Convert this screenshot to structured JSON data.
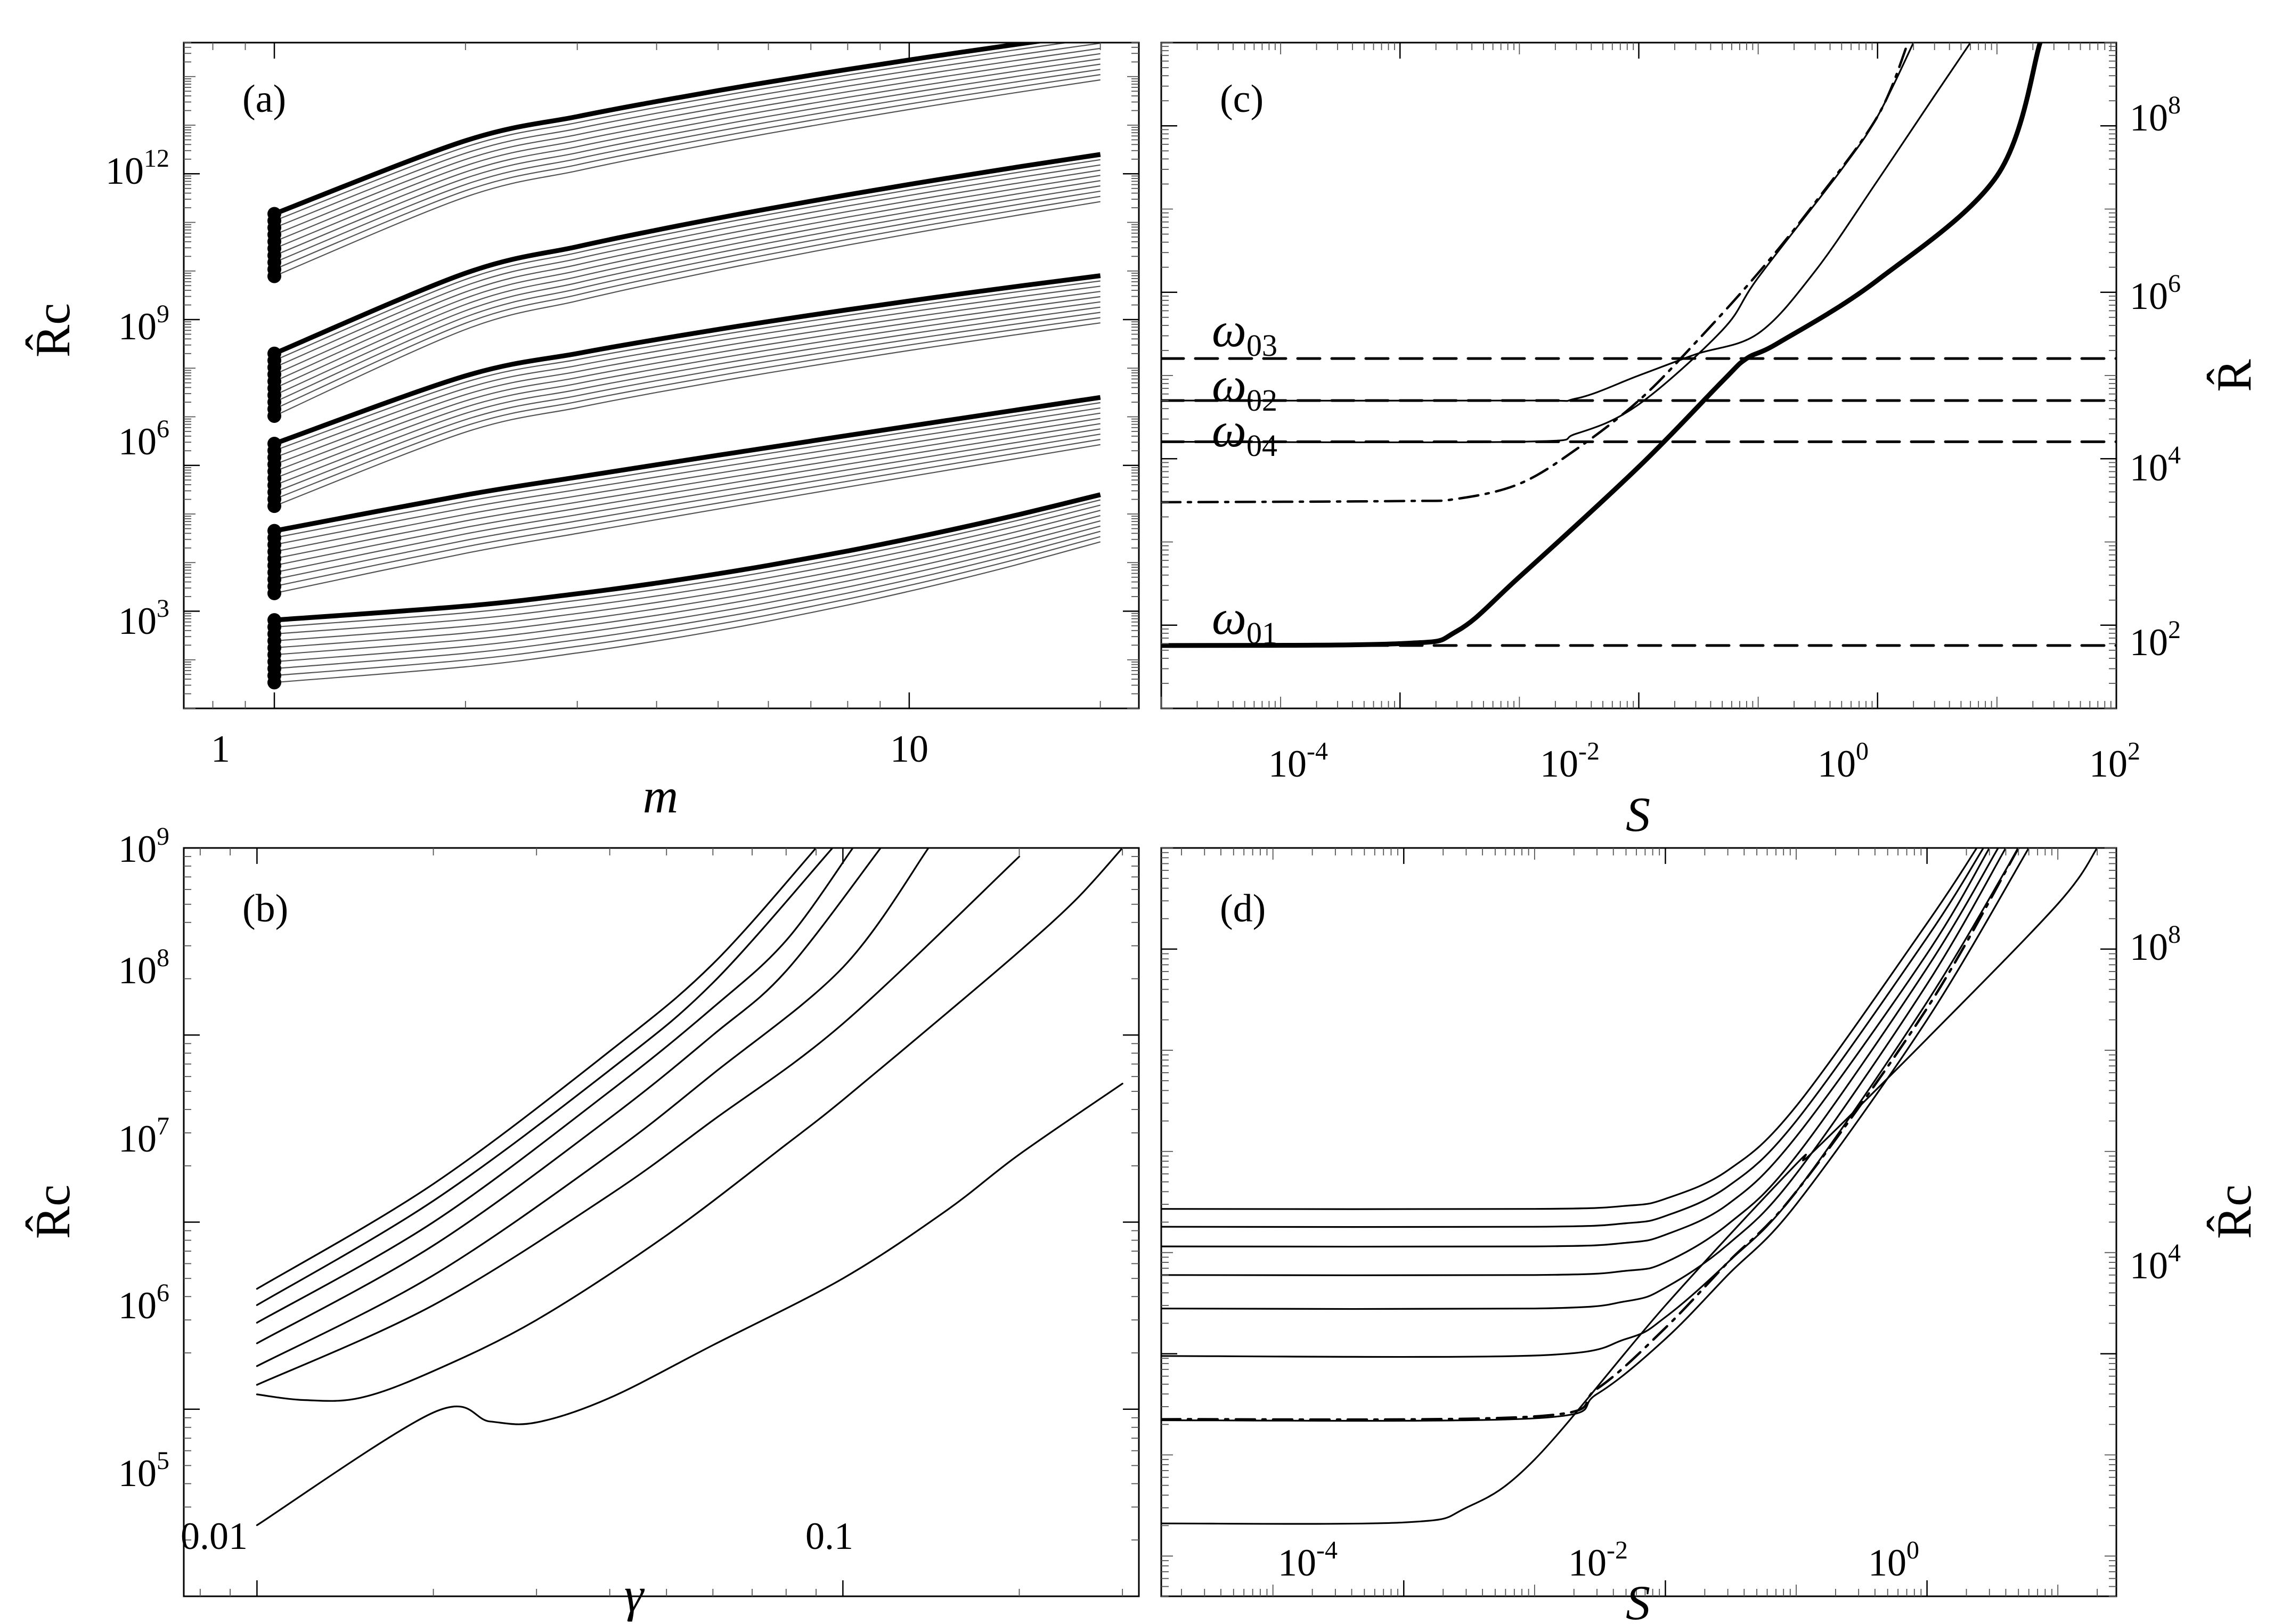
{
  "figure": {
    "panels": [
      {
        "id": "a",
        "label": "(a)",
        "xlabel": "m",
        "ylabel": "R̂c",
        "ytick_labels": [
          "10",
          "10",
          "10",
          "10"
        ],
        "ytick_exps": [
          "3",
          "6",
          "9",
          "12"
        ],
        "xtick_labels": [
          "1",
          "10"
        ]
      },
      {
        "id": "b",
        "label": "(b)",
        "xlabel": "γ",
        "ylabel": "R̂c",
        "ytick_labels": [
          "10",
          "10",
          "10",
          "10",
          "10"
        ],
        "ytick_exps": [
          "5",
          "6",
          "7",
          "8",
          "9"
        ],
        "xtick_labels": [
          "0.01",
          "0.1"
        ]
      },
      {
        "id": "c",
        "label": "(c)",
        "xlabel": "S",
        "ylabel": "R̂",
        "ytick_labels": [
          "10",
          "10",
          "10",
          "10"
        ],
        "ytick_exps": [
          "2",
          "4",
          "6",
          "8"
        ],
        "xtick_labels": [
          "10",
          "10",
          "10",
          "10"
        ],
        "xtick_exps": [
          "-4",
          "-2",
          "0",
          "2"
        ],
        "annotations": [
          {
            "sym": "ω",
            "sub": "03"
          },
          {
            "sym": "ω",
            "sub": "02"
          },
          {
            "sym": "ω",
            "sub": "04"
          },
          {
            "sym": "ω",
            "sub": "01"
          }
        ]
      },
      {
        "id": "d",
        "label": "(d)",
        "xlabel": "S",
        "ylabel": "R̂c",
        "ytick_labels": [
          "10",
          "10"
        ],
        "ytick_exps": [
          "4",
          "8"
        ],
        "xtick_labels": [
          "10",
          "10",
          "10"
        ],
        "xtick_exps": [
          "-4",
          "-2",
          "0"
        ]
      }
    ]
  },
  "chart_data": [
    {
      "type": "line",
      "panel": "a",
      "title": "(a)",
      "xlabel": "m",
      "ylabel": "R̂c",
      "xscale": "log",
      "yscale": "log",
      "xlim": [
        0.72,
        23
      ],
      "ylim": [
        10,
        500000000000000.0
      ],
      "x": [
        1,
        2,
        3,
        4,
        5,
        6,
        8,
        10,
        12,
        15,
        20
      ],
      "note": "Five bold curves (one per radial mode) each with nine thin companion curves; dots at m = 1.",
      "series": [
        {
          "name": "family-1-bold",
          "start": 657,
          "end": 250000.0,
          "profile": "concave-up"
        },
        {
          "name": "family-2-bold",
          "start": 45000.0,
          "end": 25000000.0,
          "profile": "linear"
        },
        {
          "name": "family-3-bold",
          "start": 2800000.0,
          "end": 8000000000.0,
          "profile": "concave-down"
        },
        {
          "name": "family-4-bold",
          "start": 200000000.0,
          "end": 2500000000000.0,
          "profile": "concave-down"
        },
        {
          "name": "family-5-bold",
          "start": 150000000000.0,
          "end": 800000000000000.0,
          "profile": "concave-down"
        }
      ],
      "thin_curve_start_ratio": 0.72
    },
    {
      "type": "line",
      "panel": "b",
      "title": "(b)",
      "xlabel": "γ",
      "ylabel": "R̂c",
      "xscale": "log",
      "yscale": "log",
      "xlim": [
        0.0075,
        0.32
      ],
      "ylim": [
        100000.0,
        1000000000.0
      ],
      "series": [
        {
          "name": "curve-1",
          "x": [
            0.01,
            0.02,
            0.025,
            0.03,
            0.04,
            0.06,
            0.1,
            0.15,
            0.2,
            0.3
          ],
          "y": [
            240000.0,
            960000.0,
            860000.0,
            850000.0,
            1150000.0,
            2200000.0,
            5000000.0,
            11500000.0,
            23000000.0,
            55000000.0
          ]
        },
        {
          "name": "curve-2",
          "x": [
            0.01,
            0.012,
            0.015,
            0.02,
            0.03,
            0.05,
            0.08,
            0.1,
            0.15,
            0.2,
            0.25,
            0.3
          ],
          "y": [
            1200000.0,
            1120000.0,
            1150000.0,
            1600000.0,
            3000000.0,
            8500000.0,
            26000000.0,
            45000000.0,
            130000000.0,
            280000000.0,
            530000000.0,
            1000000000.0
          ]
        },
        {
          "name": "curve-3",
          "x": [
            0.01,
            0.02,
            0.04,
            0.06,
            0.1,
            0.2
          ],
          "y": [
            1350000.0,
            3600000.0,
            14000000.0,
            35000000.0,
            115000000.0,
            900000000.0
          ]
        },
        {
          "name": "curve-4",
          "x": [
            0.01,
            0.02,
            0.04,
            0.06,
            0.1,
            0.14
          ],
          "y": [
            1700000.0,
            5200000.0,
            23000000.0,
            62000000.0,
            230000000.0,
            1000000000.0
          ]
        },
        {
          "name": "curve-5",
          "x": [
            0.01,
            0.02,
            0.04,
            0.06,
            0.08,
            0.116
          ],
          "y": [
            2250000.0,
            7500000.0,
            36000000.0,
            100000000.0,
            220000000.0,
            1000000000.0
          ]
        },
        {
          "name": "curve-6",
          "x": [
            0.01,
            0.02,
            0.04,
            0.06,
            0.08,
            0.104
          ],
          "y": [
            2900000.0,
            10000000.0,
            50000000.0,
            140000000.0,
            320000000.0,
            1000000000.0
          ]
        },
        {
          "name": "curve-7",
          "x": [
            0.01,
            0.02,
            0.04,
            0.06,
            0.096
          ],
          "y": [
            3600000.0,
            13000000.0,
            65000000.0,
            190000000.0,
            1000000000.0
          ]
        },
        {
          "name": "curve-8",
          "x": [
            0.01,
            0.02,
            0.04,
            0.06,
            0.09
          ],
          "y": [
            4400000.0,
            16000000.0,
            82000000.0,
            240000000.0,
            1000000000.0
          ]
        }
      ]
    },
    {
      "type": "line",
      "panel": "c",
      "title": "(c)",
      "xlabel": "S",
      "ylabel": "R̂",
      "xscale": "log",
      "yscale": "log",
      "xlim": [
        1e-06,
        100
      ],
      "ylim": [
        10,
        1000000000.0
      ],
      "series": [
        {
          "name": "ω01 (dashed)",
          "style": "dashed",
          "x": [
            1e-06,
            100
          ],
          "y": [
            57,
            57
          ]
        },
        {
          "name": "ω04 (dashed)",
          "style": "dashed",
          "x": [
            1e-06,
            100
          ],
          "y": [
            16000.0,
            16000.0
          ]
        },
        {
          "name": "ω02 (dashed)",
          "style": "dashed",
          "x": [
            1e-06,
            100
          ],
          "y": [
            50000.0,
            50000.0
          ]
        },
        {
          "name": "ω03 (dashed)",
          "style": "dashed",
          "x": [
            1e-06,
            100
          ],
          "y": [
            160000.0,
            160000.0
          ]
        },
        {
          "name": "bold",
          "style": "bold",
          "x": [
            1e-06,
            0.0001,
            0.0003,
            0.001,
            0.01,
            0.05,
            0.08,
            0.15,
            1,
            10,
            23
          ],
          "y": [
            57,
            60,
            85,
            380,
            8000.0,
            85000.0,
            160000.0,
            250000.0,
            1400000.0,
            25000000.0,
            1000000000.0
          ]
        },
        {
          "name": "dash-dot",
          "style": "dashdot",
          "x": [
            1e-06,
            0.0001,
            0.0003,
            0.001,
            0.003,
            0.01,
            0.03,
            0.1,
            0.3,
            1,
            1.8
          ],
          "y": [
            3000.0,
            3100.0,
            3300.0,
            5000.0,
            13000.0,
            50000.0,
            250000.0,
            1700000.0,
            12000000.0,
            130000000.0,
            1000000000.0
          ]
        },
        {
          "name": "thin-a",
          "style": "solid",
          "x": [
            1e-06,
            0.001,
            0.003,
            0.01,
            0.05,
            0.1,
            0.5,
            1,
            2
          ],
          "y": [
            16000.0,
            16000.0,
            20000.0,
            45000.0,
            350000.0,
            1500000.0,
            30000000.0,
            130000000.0,
            1000000000.0
          ]
        },
        {
          "name": "thin-b",
          "style": "solid",
          "x": [
            1e-06,
            0.001,
            0.003,
            0.01,
            0.03,
            0.1,
            0.3,
            1,
            3,
            6
          ],
          "y": [
            50000.0,
            50000.0,
            53000.0,
            100000.0,
            180000.0,
            320000.0,
            1800000.0,
            22000000.0,
            230000000.0,
            1000000000.0
          ]
        }
      ]
    },
    {
      "type": "line",
      "panel": "d",
      "title": "(d)",
      "xlabel": "S",
      "ylabel": "R̂c",
      "xscale": "log",
      "yscale": "log",
      "xlim": [
        1.4e-06,
        28
      ],
      "ylim": [
        40,
        1000000000.0
      ],
      "series": [
        {
          "name": "curve-1",
          "style": "solid",
          "x": [
            1.4e-06,
            0.0001,
            0.0003,
            0.001,
            0.01,
            0.1,
            0.13,
            1,
            10,
            20
          ],
          "y": [
            210,
            215,
            300,
            900,
            30000.0,
            750000.0,
            950000.0,
            13000000.0,
            280000000.0,
            1000000000.0
          ]
        },
        {
          "name": "curve-2",
          "style": "solid",
          "x": [
            1.4e-06,
            0.001,
            0.003,
            0.01,
            0.03,
            0.1,
            1,
            6
          ],
          "y": [
            2200.0,
            2300.0,
            4000.0,
            14000.0,
            60000.0,
            300000.0,
            20000000.0,
            1000000000.0
          ]
        },
        {
          "name": "dash-dot",
          "style": "dashdot",
          "x": [
            1.4e-06,
            0.001,
            0.003,
            0.01,
            0.03,
            0.1,
            1,
            5
          ],
          "y": [
            2250.0,
            2400.0,
            4500.0,
            18000.0,
            80000.0,
            400000.0,
            26000000.0,
            1000000000.0
          ]
        },
        {
          "name": "curve-3",
          "style": "solid",
          "x": [
            1.4e-06,
            0.001,
            0.005,
            0.01,
            0.03,
            0.1,
            1,
            5
          ],
          "y": [
            9500.0,
            9600.0,
            14000.0,
            23000.0,
            80000.0,
            400000.0,
            30000000.0,
            1000000000.0
          ]
        },
        {
          "name": "curve-4",
          "style": "solid",
          "x": [
            1.4e-06,
            0.001,
            0.005,
            0.01,
            0.03,
            0.1,
            1,
            4
          ],
          "y": [
            28000.0,
            28000.0,
            33000.0,
            45000.0,
            120000.0,
            600000.0,
            45000000.0,
            1000000000.0
          ]
        },
        {
          "name": "curve-5",
          "style": "solid",
          "x": [
            1.4e-06,
            0.001,
            0.005,
            0.01,
            0.03,
            0.1,
            1,
            3.5
          ],
          "y": [
            60000.0,
            60000.0,
            66000.0,
            80000.0,
            190000.0,
            900000.0,
            65000000.0,
            1000000000.0
          ]
        },
        {
          "name": "curve-6",
          "style": "solid",
          "x": [
            1.4e-06,
            0.001,
            0.005,
            0.01,
            0.03,
            0.1,
            1,
            3
          ],
          "y": [
            115000.0,
            115000.0,
            125000.0,
            150000.0,
            300000.0,
            1400000.0,
            90000000.0,
            1000000000.0
          ]
        },
        {
          "name": "curve-7",
          "style": "solid",
          "x": [
            1.4e-06,
            0.001,
            0.005,
            0.01,
            0.03,
            0.1,
            1,
            2.7
          ],
          "y": [
            180000.0,
            180000.0,
            195000.0,
            230000.0,
            450000.0,
            2000000.0,
            130000000.0,
            1000000000.0
          ]
        },
        {
          "name": "curve-8",
          "style": "solid",
          "x": [
            1.4e-06,
            0.001,
            0.005,
            0.01,
            0.03,
            0.1,
            1,
            2.4
          ],
          "y": [
            270000.0,
            270000.0,
            290000.0,
            340000.0,
            650000.0,
            2800000.0,
            180000000.0,
            1000000000.0
          ]
        }
      ]
    }
  ]
}
